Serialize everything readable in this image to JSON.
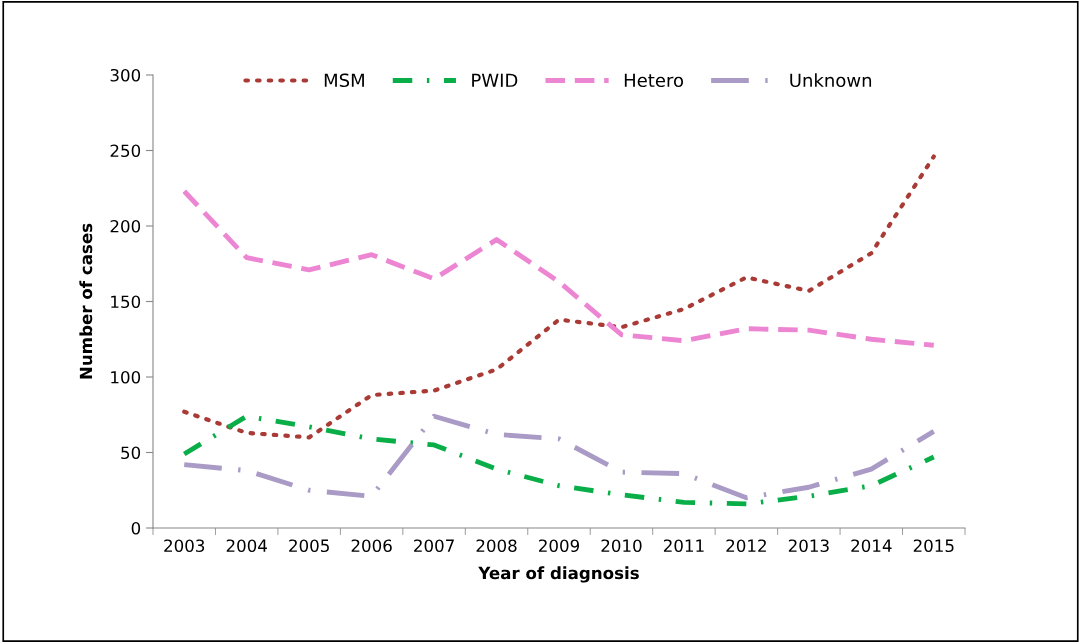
{
  "chart_data": {
    "type": "line",
    "xlabel": "Year of diagnosis",
    "ylabel": "Number of cases",
    "categories": [
      "2003",
      "2004",
      "2005",
      "2006",
      "2007",
      "2008",
      "2009",
      "2010",
      "2011",
      "2012",
      "2013",
      "2014",
      "2015"
    ],
    "ylim": [
      0,
      300
    ],
    "yticks": [
      0,
      50,
      100,
      150,
      200,
      250,
      300
    ],
    "grid": false,
    "legend": "top",
    "series": [
      {
        "name": "MSM",
        "color": "#a93a36",
        "line_style": "dotted",
        "values": [
          77,
          63,
          60,
          88,
          91,
          105,
          138,
          133,
          145,
          166,
          157,
          182,
          246
        ]
      },
      {
        "name": "PWID",
        "color": "#0aae48",
        "line_style": "dashdot",
        "values": [
          49,
          74,
          67,
          59,
          55,
          39,
          28,
          22,
          17,
          16,
          21,
          28,
          47
        ]
      },
      {
        "name": "Hetero",
        "color": "#ec85d2",
        "line_style": "dashed",
        "values": [
          223,
          179,
          171,
          181,
          165,
          191,
          163,
          128,
          124,
          132,
          131,
          125,
          121
        ]
      },
      {
        "name": "Unknown",
        "color": "#a99bc6",
        "line_style": "longdashdot",
        "values": [
          42,
          38,
          25,
          21,
          74,
          62,
          59,
          37,
          36,
          20,
          27,
          39,
          64
        ]
      }
    ]
  }
}
